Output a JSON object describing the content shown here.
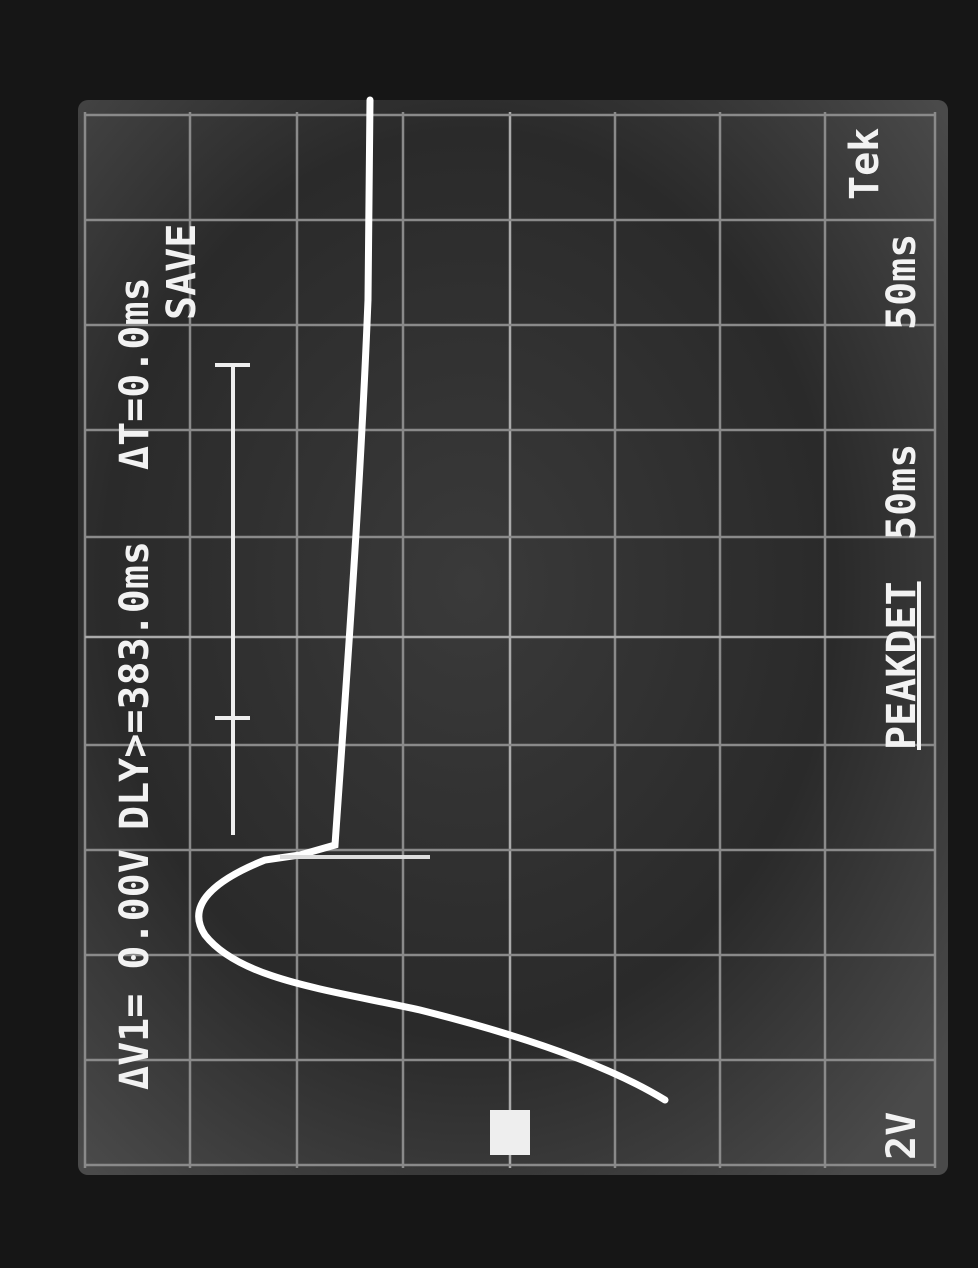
{
  "readouts": {
    "delta_v": "ΔV1= 0.00V",
    "delay": "DLY>=383.0ms",
    "delta_t": "ΔT=0.0ms",
    "mode": "SAVE",
    "brand": "Tek",
    "ch1_scale": "2V",
    "acquire": "PEAKDET",
    "timebase_main": "50ms",
    "timebase_delayed": "50ms"
  }
}
